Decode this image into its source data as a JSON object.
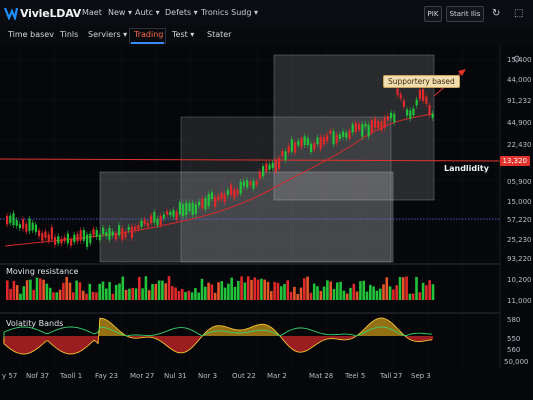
{
  "app": {
    "name": "VivleLDAV"
  },
  "menu": [
    "Maet",
    "New ▾",
    "Autc ▾",
    "Defets ▾",
    "Tronics Sudg ▾"
  ],
  "topright": {
    "pik": "PIK",
    "start": "Starit Ilis"
  },
  "toolbar": [
    "Time basev",
    "Tinls",
    "Serviers ▾",
    "Trading",
    "Test ▾",
    "Stater"
  ],
  "annotations": {
    "callout": "Supportery based",
    "line_label": "Landlidity",
    "price_tag": "13,320"
  },
  "y_axis": [
    "15,400",
    "44,000",
    "91,232",
    "44,900",
    "22,430",
    "13,320",
    "05,900",
    "15,000",
    "57,220",
    "25,230",
    "93,220"
  ],
  "x_axis": [
    "y 57",
    "Nof 37",
    "Taoll 1",
    "Fay 23",
    "Mor 27",
    "Nul 31",
    "Nor 3",
    "Out 22",
    "Mar 2",
    "Mat 28",
    "Teel 5",
    "Tall 27",
    "Sep 3"
  ],
  "panes": {
    "volume_title": "Moving resistance",
    "volume_axis": [
      "10,200",
      "11,000"
    ],
    "bands_title": "Volatity Bands",
    "bands_axis": [
      "580",
      "550",
      "560",
      "50,000"
    ]
  },
  "colors": {
    "up": "#22c33a",
    "down": "#e0292a",
    "line": "#e03030",
    "bg": "#05070b"
  }
}
